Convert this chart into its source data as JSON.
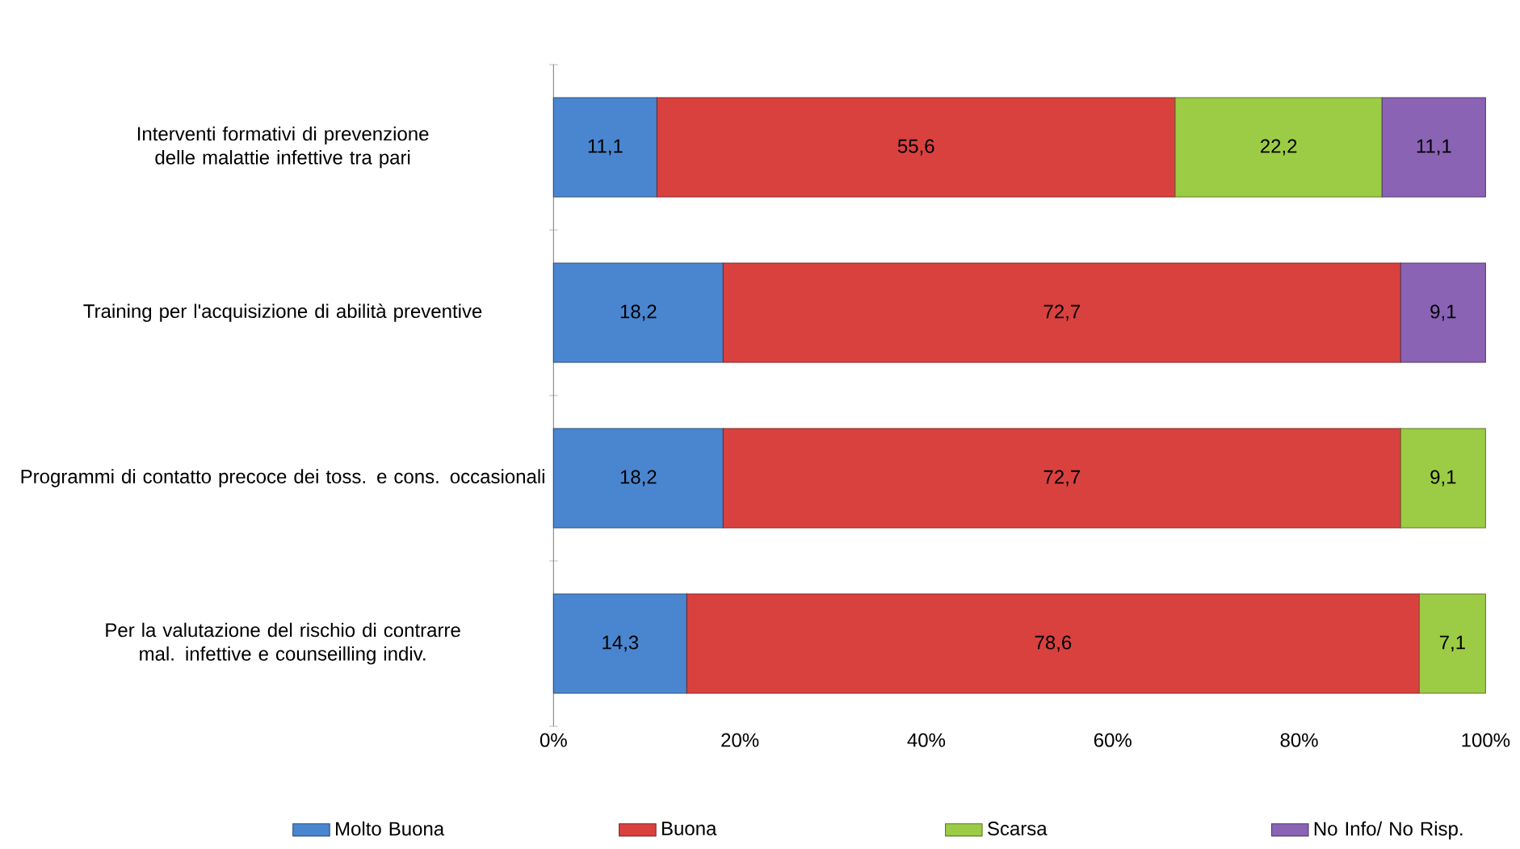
{
  "chart_data": {
    "type": "bar",
    "orientation": "horizontal",
    "stacked": true,
    "data_labels": true,
    "legend": "bottom",
    "categories": [
      "Interventi formativi di prevenzione delle malattie infettive tra pari",
      "Training per l'acquisizione di abilità preventive",
      "Programmi di contatto precoce dei toss. e cons. occasionali",
      "Per la valutazione del rischio di contrarre mal. infettive e counseilling indiv."
    ],
    "xlim": [
      0,
      100
    ],
    "xticks": [
      {
        "value": 0,
        "label": "0%"
      },
      {
        "value": 20,
        "label": "20%"
      },
      {
        "value": 40,
        "label": "40%"
      },
      {
        "value": 60,
        "label": "60%"
      },
      {
        "value": 80,
        "label": "80%"
      },
      {
        "value": 100,
        "label": "100%"
      }
    ],
    "series": [
      {
        "name": "Molto Buona",
        "color": "#4a86d0",
        "values": [
          11.1,
          18.2,
          18.2,
          14.3
        ],
        "value_labels": [
          "11,1",
          "18,2",
          "18,2",
          "14,3"
        ]
      },
      {
        "name": "Buona",
        "color": "#d9413f",
        "values": [
          55.6,
          72.7,
          72.7,
          78.6
        ],
        "value_labels": [
          "55,6",
          "72,7",
          "72,7",
          "78,6"
        ]
      },
      {
        "name": "Scarsa",
        "color": "#9ccc45",
        "values": [
          22.2,
          null,
          9.1,
          7.1
        ],
        "value_labels": [
          "22,2",
          null,
          "9,1",
          "7,1"
        ]
      },
      {
        "name": "No Info/ No Risp.",
        "color": "#8a63b5",
        "values": [
          11.1,
          9.1,
          null,
          null
        ],
        "value_labels": [
          "11,1",
          "9,1",
          null,
          null
        ]
      }
    ]
  }
}
